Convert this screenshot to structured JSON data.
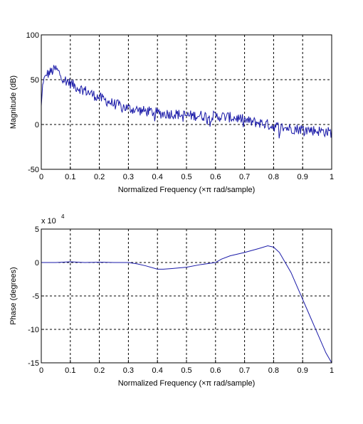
{
  "colors": {
    "line": "#1a1aa8",
    "axes": "#000000",
    "grid": "#000000",
    "background": "#ffffff"
  },
  "chart_data": [
    {
      "type": "line",
      "xlabel": "Normalized Frequency  (×π rad/sample)",
      "ylabel": "Magnitude (dB)",
      "xlim": [
        0,
        1
      ],
      "ylim": [
        -50,
        100
      ],
      "xticks": [
        "0",
        "0.1",
        "0.2",
        "0.3",
        "0.4",
        "0.5",
        "0.6",
        "0.7",
        "0.8",
        "0.9",
        "1"
      ],
      "yticks": [
        "-50",
        "0",
        "50",
        "100"
      ],
      "grid": true,
      "series": [
        {
          "x": [
            0,
            0.005,
            0.01,
            0.02,
            0.03,
            0.04,
            0.05,
            0.06,
            0.07,
            0.08,
            0.1,
            0.12,
            0.15,
            0.18,
            0.2,
            0.22,
            0.25,
            0.28,
            0.3,
            0.32,
            0.35,
            0.38,
            0.4,
            0.42,
            0.45,
            0.48,
            0.5,
            0.52,
            0.55,
            0.58,
            0.6,
            0.62,
            0.65,
            0.68,
            0.7,
            0.72,
            0.75,
            0.78,
            0.8,
            0.82,
            0.85,
            0.88,
            0.9,
            0.92,
            0.95,
            0.98,
            1.0
          ],
          "values": [
            20,
            45,
            52,
            56,
            58,
            60,
            62,
            58,
            54,
            50,
            46,
            42,
            38,
            33,
            30,
            27,
            23,
            20,
            18,
            17,
            15,
            14,
            13,
            12,
            12,
            11,
            10,
            10,
            10,
            9,
            9,
            9,
            8,
            7,
            5,
            3,
            2,
            0,
            -2,
            -3,
            -4,
            -5,
            -5,
            -6,
            -7,
            -8,
            -9
          ]
        }
      ]
    },
    {
      "type": "line",
      "xlabel": "Normalized Frequency  (×π rad/sample)",
      "ylabel": "Phase (degrees)",
      "scale_label": "x 10",
      "scale_exponent": "4",
      "xlim": [
        0,
        1
      ],
      "ylim": [
        -15,
        5
      ],
      "xticks": [
        "0",
        "0.1",
        "0.2",
        "0.3",
        "0.4",
        "0.5",
        "0.6",
        "0.7",
        "0.8",
        "0.9",
        "1"
      ],
      "yticks": [
        "-15",
        "-10",
        "-5",
        "0",
        "5"
      ],
      "grid": true,
      "series": [
        {
          "x": [
            0,
            0.05,
            0.1,
            0.15,
            0.2,
            0.25,
            0.3,
            0.33,
            0.36,
            0.4,
            0.42,
            0.45,
            0.5,
            0.55,
            0.6,
            0.62,
            0.65,
            0.7,
            0.75,
            0.78,
            0.8,
            0.82,
            0.84,
            0.86,
            0.88,
            0.9,
            0.92,
            0.94,
            0.96,
            0.98,
            1.0
          ],
          "values": [
            0,
            0,
            0.1,
            0,
            0.05,
            0,
            0,
            -0.2,
            -0.5,
            -1.0,
            -1.0,
            -0.9,
            -0.7,
            -0.3,
            0,
            0.5,
            1.0,
            1.5,
            2.1,
            2.5,
            2.3,
            1.5,
            0,
            -1.5,
            -3.5,
            -5.5,
            -7.5,
            -9.5,
            -11.5,
            -13.5,
            -15
          ]
        }
      ]
    }
  ]
}
